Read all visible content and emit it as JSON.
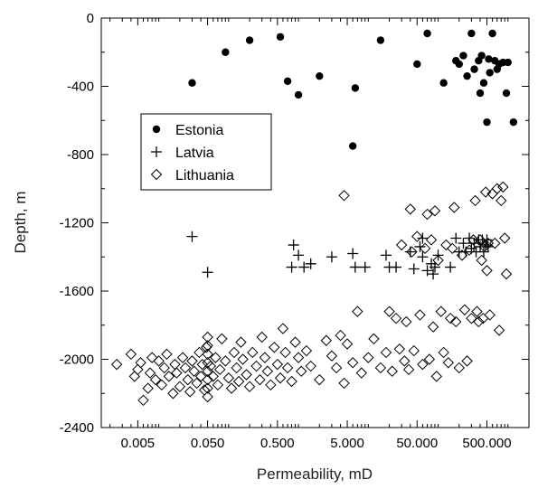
{
  "chart_data": {
    "type": "scatter",
    "title": "",
    "xlabel": "Permeability, mD",
    "ylabel": "Depth, m",
    "x_scale": "log",
    "xlim": [
      0.0015,
      2000
    ],
    "ylim": [
      -2400,
      0
    ],
    "x_ticks": [
      0.005,
      0.05,
      0.5,
      5,
      50,
      500
    ],
    "x_tick_labels": [
      "0.005",
      "0.050",
      "0.500",
      "5.000",
      "50.000",
      "500.000"
    ],
    "y_ticks": [
      0,
      -400,
      -800,
      -1200,
      -1600,
      -2000,
      -2400
    ],
    "y_tick_labels": [
      "0",
      "-400",
      "-800",
      "-1200",
      "-1600",
      "-2000",
      "-2400"
    ],
    "grid": false,
    "legend_position": "upper-left",
    "series": [
      {
        "name": "Estonia",
        "marker": "filled-circle",
        "points": [
          [
            0.03,
            -380
          ],
          [
            0.09,
            -200
          ],
          [
            0.2,
            -130
          ],
          [
            0.55,
            -110
          ],
          [
            0.7,
            -370
          ],
          [
            1.0,
            -450
          ],
          [
            2.0,
            -340
          ],
          [
            6.0,
            -750
          ],
          [
            6.5,
            -410
          ],
          [
            15,
            -130
          ],
          [
            50,
            -270
          ],
          [
            70,
            -90
          ],
          [
            120,
            -380
          ],
          [
            180,
            -250
          ],
          [
            200,
            -270
          ],
          [
            230,
            -220
          ],
          [
            260,
            -340
          ],
          [
            300,
            -90
          ],
          [
            330,
            -300
          ],
          [
            380,
            -250
          ],
          [
            400,
            -440
          ],
          [
            420,
            -220
          ],
          [
            450,
            -380
          ],
          [
            500,
            -610
          ],
          [
            530,
            -240
          ],
          [
            550,
            -320
          ],
          [
            600,
            -90
          ],
          [
            650,
            -250
          ],
          [
            700,
            -300
          ],
          [
            750,
            -270
          ],
          [
            850,
            -260
          ],
          [
            950,
            -440
          ],
          [
            1000,
            -260
          ],
          [
            1200,
            -610
          ]
        ]
      },
      {
        "name": "Latvia",
        "marker": "plus",
        "points": [
          [
            0.03,
            -1280
          ],
          [
            0.05,
            -1490
          ],
          [
            0.8,
            -1460
          ],
          [
            0.85,
            -1330
          ],
          [
            1.0,
            -1390
          ],
          [
            1.2,
            -1460
          ],
          [
            1.5,
            -1440
          ],
          [
            3.0,
            -1400
          ],
          [
            6.0,
            -1380
          ],
          [
            6.5,
            -1460
          ],
          [
            9.0,
            -1460
          ],
          [
            18,
            -1390
          ],
          [
            20,
            -1460
          ],
          [
            25,
            -1460
          ],
          [
            40,
            -1370
          ],
          [
            45,
            -1470
          ],
          [
            55,
            -1340
          ],
          [
            60,
            -1400
          ],
          [
            60,
            -1290
          ],
          [
            70,
            -1480
          ],
          [
            80,
            -1440
          ],
          [
            85,
            -1500
          ],
          [
            90,
            -1460
          ],
          [
            100,
            -1390
          ],
          [
            150,
            -1460
          ],
          [
            180,
            -1290
          ],
          [
            200,
            -1370
          ],
          [
            230,
            -1320
          ],
          [
            250,
            -1370
          ],
          [
            280,
            -1290
          ],
          [
            300,
            -1350
          ],
          [
            330,
            -1320
          ],
          [
            350,
            -1370
          ],
          [
            380,
            -1300
          ],
          [
            400,
            -1340
          ],
          [
            430,
            -1300
          ],
          [
            450,
            -1370
          ],
          [
            480,
            -1330
          ],
          [
            500,
            -1300
          ],
          [
            520,
            -1340
          ]
        ]
      },
      {
        "name": "Lithuania",
        "marker": "open-diamond",
        "points": [
          [
            0.0025,
            -2030
          ],
          [
            0.004,
            -1970
          ],
          [
            0.0045,
            -2100
          ],
          [
            0.005,
            -2060
          ],
          [
            0.0055,
            -2020
          ],
          [
            0.006,
            -2240
          ],
          [
            0.007,
            -2170
          ],
          [
            0.0075,
            -2080
          ],
          [
            0.008,
            -1990
          ],
          [
            0.009,
            -2120
          ],
          [
            0.01,
            -2010
          ],
          [
            0.011,
            -2150
          ],
          [
            0.012,
            -2050
          ],
          [
            0.013,
            -1970
          ],
          [
            0.014,
            -2100
          ],
          [
            0.016,
            -2200
          ],
          [
            0.017,
            -2030
          ],
          [
            0.018,
            -2080
          ],
          [
            0.02,
            -2160
          ],
          [
            0.022,
            -1990
          ],
          [
            0.024,
            -2050
          ],
          [
            0.026,
            -2120
          ],
          [
            0.028,
            -2190
          ],
          [
            0.03,
            -2010
          ],
          [
            0.032,
            -2070
          ],
          [
            0.035,
            -2140
          ],
          [
            0.038,
            -1960
          ],
          [
            0.04,
            -2100
          ],
          [
            0.042,
            -2030
          ],
          [
            0.045,
            -2180
          ],
          [
            0.048,
            -1930
          ],
          [
            0.05,
            -1870
          ],
          [
            0.05,
            -1920
          ],
          [
            0.05,
            -1970
          ],
          [
            0.05,
            -2020
          ],
          [
            0.05,
            -2070
          ],
          [
            0.05,
            -2120
          ],
          [
            0.05,
            -2170
          ],
          [
            0.05,
            -2220
          ],
          [
            0.055,
            -2040
          ],
          [
            0.06,
            -2100
          ],
          [
            0.065,
            -1990
          ],
          [
            0.07,
            -2150
          ],
          [
            0.075,
            -2060
          ],
          [
            0.08,
            -1880
          ],
          [
            0.09,
            -2010
          ],
          [
            0.1,
            -2110
          ],
          [
            0.11,
            -2170
          ],
          [
            0.12,
            -1960
          ],
          [
            0.13,
            -2050
          ],
          [
            0.14,
            -2130
          ],
          [
            0.15,
            -1900
          ],
          [
            0.16,
            -2000
          ],
          [
            0.18,
            -2090
          ],
          [
            0.2,
            -2160
          ],
          [
            0.22,
            -1960
          ],
          [
            0.25,
            -2040
          ],
          [
            0.28,
            -2120
          ],
          [
            0.3,
            -1870
          ],
          [
            0.33,
            -1990
          ],
          [
            0.36,
            -2070
          ],
          [
            0.4,
            -2150
          ],
          [
            0.45,
            -1930
          ],
          [
            0.5,
            -2030
          ],
          [
            0.55,
            -2110
          ],
          [
            0.6,
            -1820
          ],
          [
            0.65,
            -1960
          ],
          [
            0.7,
            -2050
          ],
          [
            0.8,
            -2130
          ],
          [
            0.9,
            -1900
          ],
          [
            1.0,
            -1990
          ],
          [
            1.1,
            -2070
          ],
          [
            1.3,
            -1950
          ],
          [
            1.5,
            -2040
          ],
          [
            2.0,
            -2120
          ],
          [
            2.5,
            -1890
          ],
          [
            3.0,
            -1980
          ],
          [
            3.5,
            -2050
          ],
          [
            4.0,
            -1860
          ],
          [
            4.5,
            -2140
          ],
          [
            4.5,
            -1040
          ],
          [
            5.0,
            -1910
          ],
          [
            6.0,
            -2020
          ],
          [
            7.0,
            -1720
          ],
          [
            8.0,
            -2080
          ],
          [
            10,
            -1990
          ],
          [
            12,
            -1880
          ],
          [
            15,
            -2050
          ],
          [
            18,
            -1960
          ],
          [
            20,
            -1720
          ],
          [
            22,
            -2070
          ],
          [
            25,
            -1760
          ],
          [
            28,
            -1940
          ],
          [
            30,
            -1330
          ],
          [
            33,
            -2010
          ],
          [
            35,
            -1780
          ],
          [
            38,
            -2060
          ],
          [
            40,
            -1120
          ],
          [
            42,
            -1370
          ],
          [
            45,
            -1950
          ],
          [
            50,
            -1280
          ],
          [
            55,
            -1740
          ],
          [
            60,
            -2030
          ],
          [
            65,
            -1350
          ],
          [
            70,
            -1150
          ],
          [
            75,
            -2000
          ],
          [
            80,
            -1300
          ],
          [
            85,
            -1810
          ],
          [
            90,
            -1130
          ],
          [
            95,
            -2100
          ],
          [
            100,
            -1420
          ],
          [
            110,
            -1720
          ],
          [
            120,
            -1960
          ],
          [
            130,
            -1330
          ],
          [
            140,
            -2020
          ],
          [
            150,
            -1760
          ],
          [
            160,
            -1350
          ],
          [
            170,
            -1110
          ],
          [
            180,
            -1780
          ],
          [
            200,
            -2050
          ],
          [
            220,
            -1390
          ],
          [
            240,
            -1710
          ],
          [
            260,
            -2010
          ],
          [
            280,
            -1360
          ],
          [
            300,
            -1760
          ],
          [
            320,
            -1300
          ],
          [
            340,
            -1070
          ],
          [
            360,
            -1720
          ],
          [
            380,
            -1780
          ],
          [
            400,
            -1300
          ],
          [
            420,
            -1420
          ],
          [
            440,
            -1760
          ],
          [
            460,
            -1340
          ],
          [
            480,
            -1020
          ],
          [
            500,
            -1480
          ],
          [
            520,
            -1320
          ],
          [
            550,
            -1740
          ],
          [
            600,
            -1030
          ],
          [
            650,
            -1320
          ],
          [
            700,
            -1000
          ],
          [
            750,
            -1830
          ],
          [
            800,
            -1070
          ],
          [
            850,
            -990
          ],
          [
            900,
            -1290
          ],
          [
            950,
            -1500
          ]
        ]
      }
    ]
  }
}
